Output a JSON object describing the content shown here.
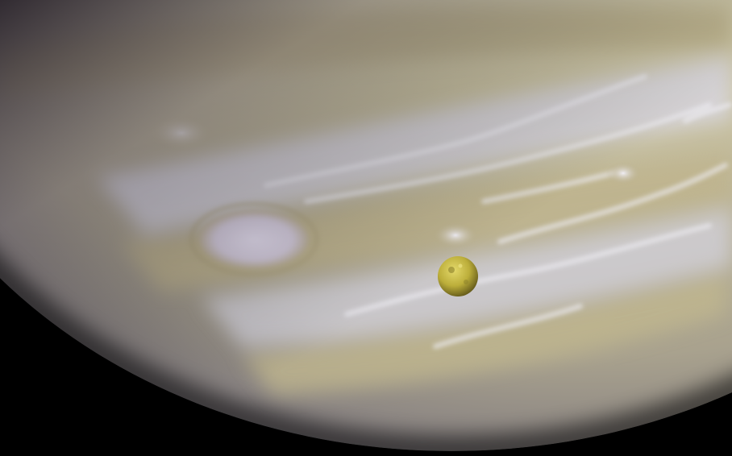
{
  "image": {
    "subjects": [
      "planet",
      "moon"
    ],
    "colors": {
      "space": "#000000",
      "planet_base": "#c9c2a0",
      "planet_light": "#e4dfc8",
      "planet_shadow": "#6f6a78",
      "cloud_band_light": "#d9d8e6",
      "cloud_band_tan": "#bfb48c",
      "oval_storm": "#dcd6e6",
      "moon_base": "#c2b43a",
      "moon_dark": "#5e5418"
    }
  }
}
